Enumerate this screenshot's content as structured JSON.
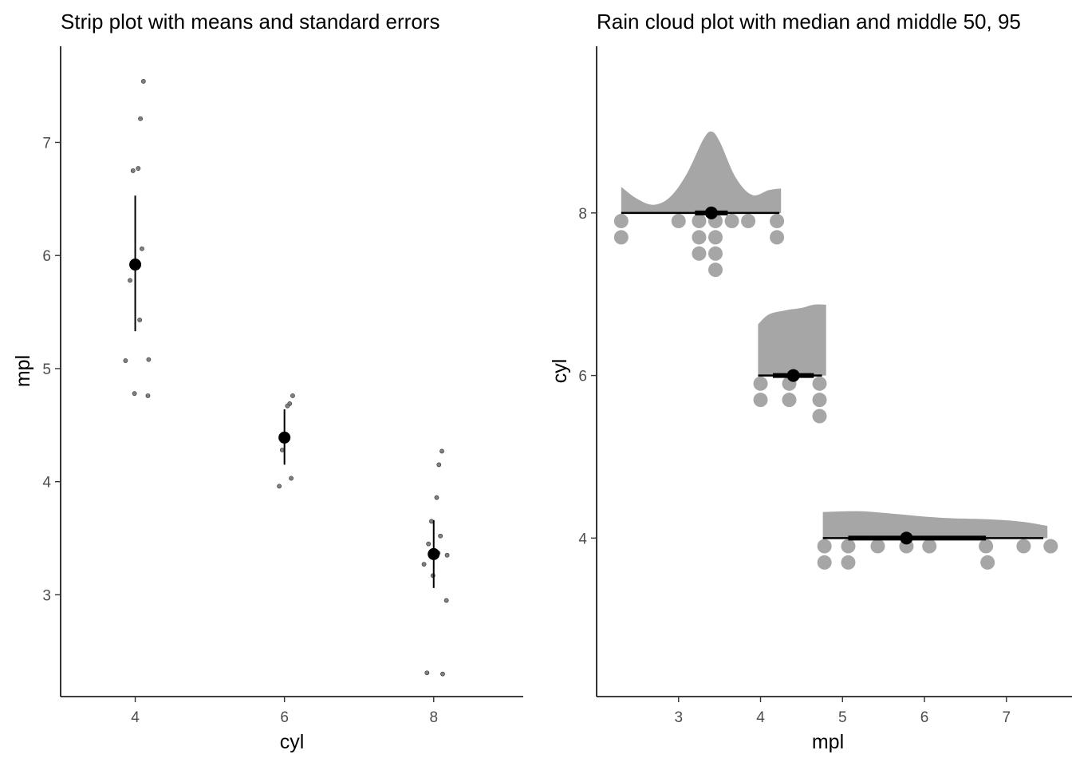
{
  "chart_data": [
    {
      "type": "scatter",
      "title": "Strip plot with means and standard errors",
      "xlabel": "cyl",
      "ylabel": "mpl",
      "xlim": [
        3,
        9.2
      ],
      "ylim": [
        2.1,
        7.85
      ],
      "xticks": [
        4,
        6,
        8
      ],
      "yticks": [
        3,
        4,
        5,
        6,
        7
      ],
      "grid": false,
      "points": [
        {
          "cyl": 4,
          "values": [
            7.54,
            7.21,
            6.77,
            6.75,
            6.06,
            5.78,
            5.43,
            5.08,
            5.07,
            4.78,
            4.76
          ]
        },
        {
          "cyl": 6,
          "values": [
            4.76,
            4.69,
            4.67,
            4.28,
            4.03,
            3.96
          ]
        },
        {
          "cyl": 8,
          "values": [
            4.27,
            4.15,
            3.86,
            3.65,
            3.52,
            3.45,
            3.37,
            3.35,
            3.27,
            3.17,
            2.95,
            2.31,
            2.3
          ]
        }
      ],
      "summary": [
        {
          "cyl": 4,
          "mean": 5.92,
          "se_low": 5.33,
          "se_high": 6.53
        },
        {
          "cyl": 6,
          "mean": 4.39,
          "se_low": 4.15,
          "se_high": 4.64
        },
        {
          "cyl": 8,
          "mean": 3.36,
          "se_low": 3.06,
          "se_high": 3.66
        }
      ],
      "colors": {
        "points": "#808080",
        "summary": "#000000"
      }
    },
    {
      "type": "rain-cloud",
      "title": "Rain cloud plot with median and middle 50, 95",
      "xlabel": "mpl",
      "ylabel": "cyl",
      "xlim": [
        2.0,
        7.8
      ],
      "ylim": [
        2.05,
        10.05
      ],
      "xticks": [
        3,
        4,
        5,
        6,
        7
      ],
      "yticks": [
        4,
        6,
        8
      ],
      "grid": false,
      "groups": [
        {
          "cyl": 8,
          "dots": [
            [
              2.3,
              7.9
            ],
            [
              3.0,
              7.9
            ],
            [
              3.25,
              7.9
            ],
            [
              3.45,
              7.9
            ],
            [
              3.65,
              7.9
            ],
            [
              3.85,
              7.9
            ],
            [
              4.2,
              7.9
            ],
            [
              2.3,
              7.7
            ],
            [
              3.25,
              7.7
            ],
            [
              3.45,
              7.7
            ],
            [
              4.2,
              7.7
            ],
            [
              3.25,
              7.5
            ],
            [
              3.45,
              7.5
            ],
            [
              3.45,
              7.3
            ]
          ],
          "density": [
            [
              2.3,
              0.32
            ],
            [
              2.5,
              0.17
            ],
            [
              2.7,
              0.1
            ],
            [
              2.9,
              0.2
            ],
            [
              3.1,
              0.48
            ],
            [
              3.3,
              0.9
            ],
            [
              3.4,
              1.0
            ],
            [
              3.5,
              0.88
            ],
            [
              3.7,
              0.43
            ],
            [
              3.9,
              0.22
            ],
            [
              4.1,
              0.28
            ],
            [
              4.25,
              0.3
            ]
          ],
          "median": 3.4,
          "range50": [
            3.2,
            3.6
          ],
          "range95": [
            2.3,
            4.23
          ]
        },
        {
          "cyl": 6,
          "dots": [
            [
              4.0,
              5.9
            ],
            [
              4.35,
              5.9
            ],
            [
              4.72,
              5.9
            ],
            [
              4.0,
              5.7
            ],
            [
              4.35,
              5.7
            ],
            [
              4.72,
              5.7
            ],
            [
              4.72,
              5.5
            ]
          ],
          "density": [
            [
              3.97,
              0.63
            ],
            [
              4.1,
              0.75
            ],
            [
              4.3,
              0.8
            ],
            [
              4.5,
              0.83
            ],
            [
              4.65,
              0.87
            ],
            [
              4.8,
              0.87
            ]
          ],
          "median": 4.4,
          "range50": [
            4.15,
            4.65
          ],
          "range95": [
            3.97,
            4.75
          ]
        },
        {
          "cyl": 4,
          "dots": [
            [
              4.78,
              3.9
            ],
            [
              5.07,
              3.9
            ],
            [
              5.43,
              3.9
            ],
            [
              5.78,
              3.9
            ],
            [
              6.06,
              3.9
            ],
            [
              6.75,
              3.9
            ],
            [
              7.21,
              3.9
            ],
            [
              7.54,
              3.9
            ],
            [
              4.78,
              3.7
            ],
            [
              5.07,
              3.7
            ],
            [
              6.77,
              3.7
            ]
          ],
          "density": [
            [
              4.76,
              0.32
            ],
            [
              5.2,
              0.33
            ],
            [
              5.6,
              0.3
            ],
            [
              6.2,
              0.25
            ],
            [
              6.8,
              0.23
            ],
            [
              7.2,
              0.2
            ],
            [
              7.5,
              0.15
            ]
          ],
          "median": 5.78,
          "range50": [
            5.07,
            6.75
          ],
          "range95": [
            4.76,
            7.45
          ]
        }
      ],
      "colors": {
        "cloud": "#a6a6a6",
        "rain": "#a6a6a6",
        "summary": "#000000"
      }
    }
  ]
}
